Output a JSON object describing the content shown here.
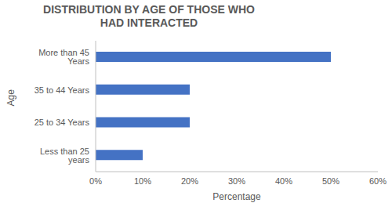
{
  "chart_data": {
    "type": "bar",
    "title": "DISTRIBUTION BY AGE OF THOSE WHO HAD INTERACTED",
    "orientation": "horizontal",
    "x_label": "Percentage",
    "y_label": "Age",
    "categories": [
      "More than 45 Years",
      "35 to 44 Years",
      "25 to 34 Years",
      "Less than  25 years"
    ],
    "values": [
      50,
      20,
      20,
      10
    ],
    "color": "#4472c4",
    "xlim": [
      0,
      60
    ],
    "xticks": [
      {
        "value": 0,
        "label": "0%"
      },
      {
        "value": 10,
        "label": "10%"
      },
      {
        "value": 20,
        "label": "20%"
      },
      {
        "value": 30,
        "label": "30%"
      },
      {
        "value": 40,
        "label": "40%"
      },
      {
        "value": 50,
        "label": "50%"
      },
      {
        "value": 60,
        "label": "60%"
      }
    ],
    "grid": false
  }
}
